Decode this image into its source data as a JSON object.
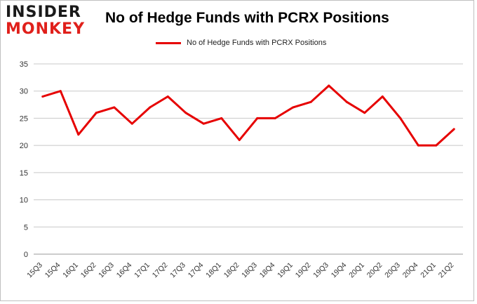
{
  "logo": {
    "line1": "INSIDER",
    "line2": "MONKEY"
  },
  "chart_data": {
    "type": "line",
    "title": "No of Hedge Funds with PCRX Positions",
    "xlabel": "",
    "ylabel": "",
    "ylim": [
      0,
      35
    ],
    "yticks": [
      0,
      5,
      10,
      15,
      20,
      25,
      30,
      35
    ],
    "grid": true,
    "legend_position": "top-center",
    "categories": [
      "15Q3",
      "15Q4",
      "16Q1",
      "16Q2",
      "16Q3",
      "16Q4",
      "17Q1",
      "17Q2",
      "17Q3",
      "17Q4",
      "18Q1",
      "18Q2",
      "18Q3",
      "18Q4",
      "19Q1",
      "19Q2",
      "19Q3",
      "19Q4",
      "20Q1",
      "20Q2",
      "20Q3",
      "20Q4",
      "21Q1",
      "21Q2"
    ],
    "series": [
      {
        "name": "No of Hedge Funds with PCRX Positions",
        "color": "#e60000",
        "values": [
          29,
          30,
          22,
          26,
          27,
          24,
          27,
          29,
          26,
          24,
          25,
          21,
          25,
          25,
          27,
          28,
          31,
          28,
          26,
          29,
          25,
          20,
          20,
          23
        ]
      }
    ]
  }
}
